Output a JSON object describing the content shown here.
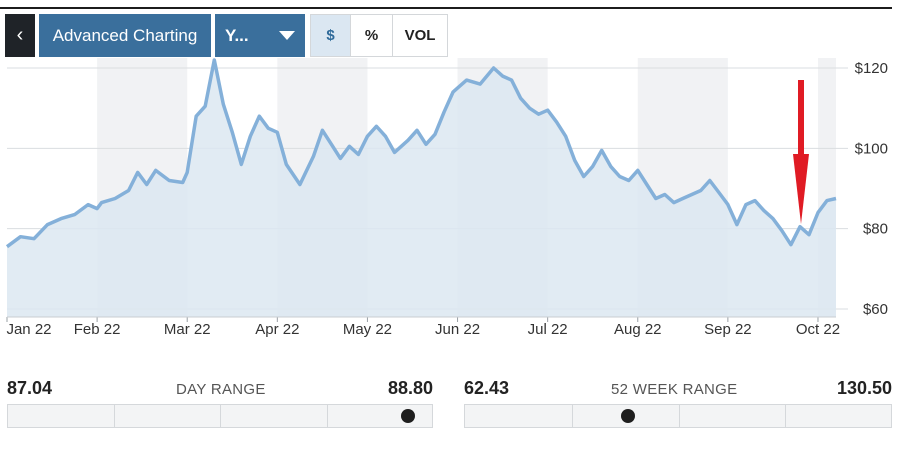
{
  "toolbar": {
    "back_label": "‹",
    "advanced_label": "Advanced Charting",
    "range_label": "Y...",
    "dollar_label": "$",
    "percent_label": "%",
    "volume_label": "VOL"
  },
  "annotation": {
    "marker": "red-arrow-icon",
    "points_to": "Sep 22 low",
    "color": "#e01b24"
  },
  "colors": {
    "line": "#84b0d9",
    "fill": "#dce7f1",
    "band": "#f1f2f4",
    "accent": "#3a6f9c",
    "arrow": "#e01b24"
  },
  "chart_data": {
    "type": "area",
    "title": "",
    "xlabel": "",
    "ylabel": "",
    "x_ticks": [
      "Jan 22",
      "Feb 22",
      "Mar 22",
      "Apr 22",
      "May 22",
      "Jun 22",
      "Jul 22",
      "Aug 22",
      "Sep 22",
      "Oct 22"
    ],
    "y_ticks": [
      "$120",
      "$100",
      "$80",
      "$60"
    ],
    "y_tick_values": [
      120,
      100,
      80,
      60
    ],
    "ylim": [
      58,
      122.5
    ],
    "xlim": [
      0,
      9.2
    ],
    "grid": "horizontal",
    "series": [
      {
        "name": "",
        "points": [
          [
            0.0,
            75.5
          ],
          [
            0.15,
            78.0
          ],
          [
            0.3,
            77.5
          ],
          [
            0.45,
            81.0
          ],
          [
            0.6,
            82.5
          ],
          [
            0.75,
            83.5
          ],
          [
            0.9,
            86.0
          ],
          [
            1.0,
            85.0
          ],
          [
            1.05,
            86.5
          ],
          [
            1.2,
            87.5
          ],
          [
            1.35,
            89.5
          ],
          [
            1.45,
            94.0
          ],
          [
            1.55,
            91.0
          ],
          [
            1.65,
            94.5
          ],
          [
            1.8,
            92.0
          ],
          [
            1.95,
            91.5
          ],
          [
            2.0,
            94.0
          ],
          [
            2.1,
            108.0
          ],
          [
            2.2,
            110.5
          ],
          [
            2.3,
            122.0
          ],
          [
            2.4,
            111.0
          ],
          [
            2.5,
            104.0
          ],
          [
            2.6,
            96.0
          ],
          [
            2.7,
            103.0
          ],
          [
            2.8,
            108.0
          ],
          [
            2.9,
            105.0
          ],
          [
            3.0,
            104.0
          ],
          [
            3.1,
            96.0
          ],
          [
            3.25,
            91.0
          ],
          [
            3.4,
            98.0
          ],
          [
            3.5,
            104.5
          ],
          [
            3.6,
            101.0
          ],
          [
            3.7,
            97.5
          ],
          [
            3.8,
            100.5
          ],
          [
            3.9,
            98.5
          ],
          [
            4.0,
            103.0
          ],
          [
            4.1,
            105.5
          ],
          [
            4.2,
            103.0
          ],
          [
            4.3,
            99.0
          ],
          [
            4.45,
            102.0
          ],
          [
            4.55,
            104.5
          ],
          [
            4.65,
            101.0
          ],
          [
            4.75,
            103.5
          ],
          [
            4.85,
            109.0
          ],
          [
            4.95,
            114.0
          ],
          [
            5.0,
            115.0
          ],
          [
            5.1,
            117.0
          ],
          [
            5.25,
            116.0
          ],
          [
            5.4,
            120.0
          ],
          [
            5.5,
            118.0
          ],
          [
            5.6,
            117.0
          ],
          [
            5.7,
            112.5
          ],
          [
            5.8,
            110.0
          ],
          [
            5.9,
            108.5
          ],
          [
            6.0,
            109.5
          ],
          [
            6.1,
            106.5
          ],
          [
            6.2,
            103.0
          ],
          [
            6.3,
            97.0
          ],
          [
            6.4,
            93.0
          ],
          [
            6.5,
            95.5
          ],
          [
            6.6,
            99.5
          ],
          [
            6.7,
            95.5
          ],
          [
            6.8,
            93.0
          ],
          [
            6.9,
            92.0
          ],
          [
            7.0,
            94.5
          ],
          [
            7.1,
            91.0
          ],
          [
            7.2,
            87.5
          ],
          [
            7.3,
            88.5
          ],
          [
            7.4,
            86.5
          ],
          [
            7.5,
            87.5
          ],
          [
            7.6,
            88.5
          ],
          [
            7.7,
            89.5
          ],
          [
            7.8,
            92.0
          ],
          [
            7.9,
            89.0
          ],
          [
            8.0,
            86.0
          ],
          [
            8.1,
            81.0
          ],
          [
            8.2,
            86.0
          ],
          [
            8.3,
            87.0
          ],
          [
            8.4,
            84.5
          ],
          [
            8.5,
            82.5
          ],
          [
            8.6,
            79.5
          ],
          [
            8.7,
            76.0
          ],
          [
            8.8,
            80.5
          ],
          [
            8.9,
            78.5
          ],
          [
            9.0,
            84.0
          ],
          [
            9.1,
            87.0
          ],
          [
            9.2,
            87.5
          ]
        ]
      }
    ]
  },
  "day_range": {
    "title": "DAY RANGE",
    "low": "87.04",
    "high": "88.80",
    "position": 0.94
  },
  "week52_range": {
    "title": "52 WEEK RANGE",
    "low": "62.43",
    "high": "130.50",
    "position": 0.38
  }
}
